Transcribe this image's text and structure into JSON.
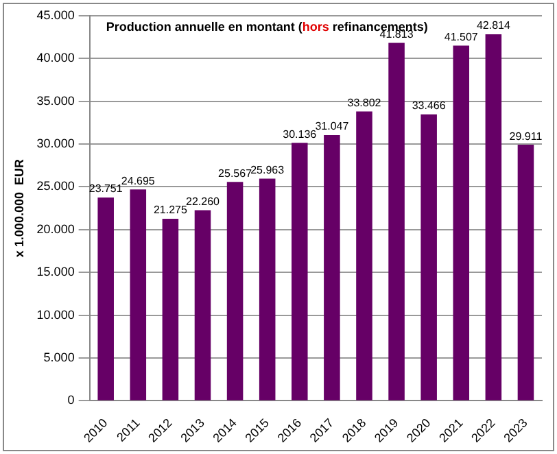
{
  "chart_data": {
    "type": "bar",
    "title": "Production annuelle en montant (hors refinancements)",
    "ylabel": "x 1.000.000  EUR",
    "categories": [
      "2010",
      "2011",
      "2012",
      "2013",
      "2014",
      "2015",
      "2016",
      "2017",
      "2018",
      "2019",
      "2020",
      "2021",
      "2022",
      "2023"
    ],
    "values": [
      23751,
      24695,
      21275,
      22260,
      25567,
      25963,
      30136,
      31047,
      33802,
      41813,
      33466,
      41507,
      42814,
      29911
    ],
    "value_labels": [
      "23.751",
      "24.695",
      "21.275",
      "22.260",
      "25.567",
      "25.963",
      "30.136",
      "31.047",
      "33.802",
      "41.813",
      "33.466",
      "41.507",
      "42.814",
      "29.911"
    ],
    "color": "#660066",
    "ylim": [
      0,
      45000
    ],
    "yticks": [
      {
        "value": 0,
        "label": "0"
      },
      {
        "value": 5000,
        "label": "5.000"
      },
      {
        "value": 10000,
        "label": "10.000"
      },
      {
        "value": 15000,
        "label": "15.000"
      },
      {
        "value": 20000,
        "label": "20.000"
      },
      {
        "value": 25000,
        "label": "25.000"
      },
      {
        "value": 30000,
        "label": "30.000"
      },
      {
        "value": 35000,
        "label": "35.000"
      },
      {
        "value": 40000,
        "label": "40.000"
      },
      {
        "value": 45000,
        "label": "45.000"
      }
    ],
    "grid": "y",
    "legend": false
  }
}
